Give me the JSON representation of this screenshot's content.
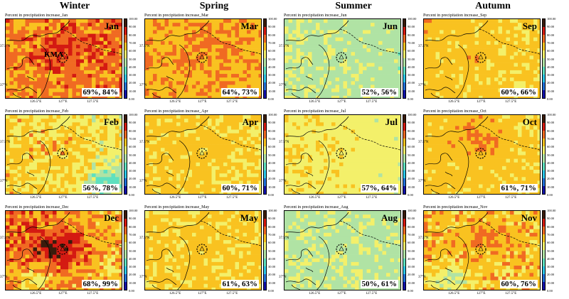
{
  "colors": {
    "scale": [
      "#3a1c0c",
      "#d41a12",
      "#f06a22",
      "#f9c220",
      "#f3f06a",
      "#b0e3a4",
      "#5fe0bf",
      "#2dc7e8",
      "#2170d8",
      "#1212a8"
    ]
  },
  "seasons": [
    "Winter",
    "Spring",
    "Summer",
    "Autumn"
  ],
  "panel_title": "Percent in precipitation increase",
  "axis": {
    "lat_labels": [
      "37.5°N",
      "37°N"
    ],
    "lon_labels": [
      "126.5°E",
      "127°E",
      "127.5°E"
    ]
  },
  "colorbar_labels": [
    "100.00",
    "90.00",
    "80.00",
    "70.00",
    "60.00",
    "50.00",
    "40.00",
    "30.00",
    "20.00",
    "10.00",
    "0.00"
  ],
  "station_label": "KMA",
  "panels": [
    {
      "id": "jan",
      "title_suffix": "_Jan",
      "month": "Jan",
      "stats": "69%, 84%",
      "base": 2.2,
      "east": -0.2,
      "hot": [
        0.45,
        0.35
      ],
      "hotAmp": 0.8,
      "noise": 0.9,
      "lowCorner": 0
    },
    {
      "id": "mar",
      "title_suffix": "_Mar",
      "month": "Mar",
      "stats": "64%, 73%",
      "base": 2.8,
      "east": 0.0,
      "hot": [
        0.45,
        0.4
      ],
      "hotAmp": 0.5,
      "noise": 0.7,
      "lowCorner": 0
    },
    {
      "id": "jun",
      "title_suffix": "_Jun",
      "month": "Jun",
      "stats": "52%, 56%",
      "base": 4.8,
      "east": 0.2,
      "hot": [
        0.5,
        0.5
      ],
      "hotAmp": 0.0,
      "noise": 0.55,
      "lowCorner": 0
    },
    {
      "id": "sep",
      "title_suffix": "_Sep",
      "month": "Sep",
      "stats": "60%, 66%",
      "base": 3.2,
      "east": 0.2,
      "hot": [
        0.5,
        0.4
      ],
      "hotAmp": 0.2,
      "noise": 0.55,
      "lowCorner": 0
    },
    {
      "id": "feb",
      "title_suffix": "_Feb",
      "month": "Feb",
      "stats": "56%, 78%",
      "base": 3.6,
      "east": 0.4,
      "hot": [
        0.5,
        0.4
      ],
      "hotAmp": 0.7,
      "noise": 0.9,
      "lowCorner": 2.0
    },
    {
      "id": "apr",
      "title_suffix": "_Apr",
      "month": "Apr",
      "stats": "60%, 71%",
      "base": 3.3,
      "east": 0.1,
      "hot": [
        0.5,
        0.4
      ],
      "hotAmp": 0.2,
      "noise": 0.5,
      "lowCorner": 0
    },
    {
      "id": "jul",
      "title_suffix": "_Jul",
      "month": "Jul",
      "stats": "57%, 64%",
      "base": 3.9,
      "east": 0.2,
      "hot": [
        0.4,
        0.5
      ],
      "hotAmp": 0.1,
      "noise": 0.5,
      "lowCorner": 0
    },
    {
      "id": "oct",
      "title_suffix": "_Oct",
      "month": "Oct",
      "stats": "61%, 71%",
      "base": 3.2,
      "east": 0.1,
      "hot": [
        0.45,
        0.25
      ],
      "hotAmp": 0.8,
      "noise": 0.5,
      "lowCorner": 0
    },
    {
      "id": "dec",
      "title_suffix": "_Dec",
      "month": "Dec",
      "stats": "68%, 99%",
      "base": 2.5,
      "east": 0.6,
      "hot": [
        0.45,
        0.45
      ],
      "hotAmp": 2.0,
      "noise": 1.0,
      "lowCorner": 1.5
    },
    {
      "id": "may",
      "title_suffix": "_May",
      "month": "May",
      "stats": "61%, 63%",
      "base": 3.3,
      "east": 0.0,
      "hot": [
        0.5,
        0.5
      ],
      "hotAmp": 0.1,
      "noise": 0.45,
      "lowCorner": 0
    },
    {
      "id": "aug",
      "title_suffix": "_Aug",
      "month": "Aug",
      "stats": "50%, 61%",
      "base": 4.8,
      "east": 0.1,
      "hot": [
        0.5,
        0.5
      ],
      "hotAmp": 0.0,
      "noise": 0.6,
      "lowCorner": 0
    },
    {
      "id": "nov",
      "title_suffix": "_Nov",
      "month": "Nov",
      "stats": "60%, 76%",
      "base": 3.0,
      "east": 0.1,
      "hot": [
        0.55,
        0.3
      ],
      "hotAmp": 0.6,
      "noise": 0.8,
      "lowCorner": 1.8
    }
  ]
}
